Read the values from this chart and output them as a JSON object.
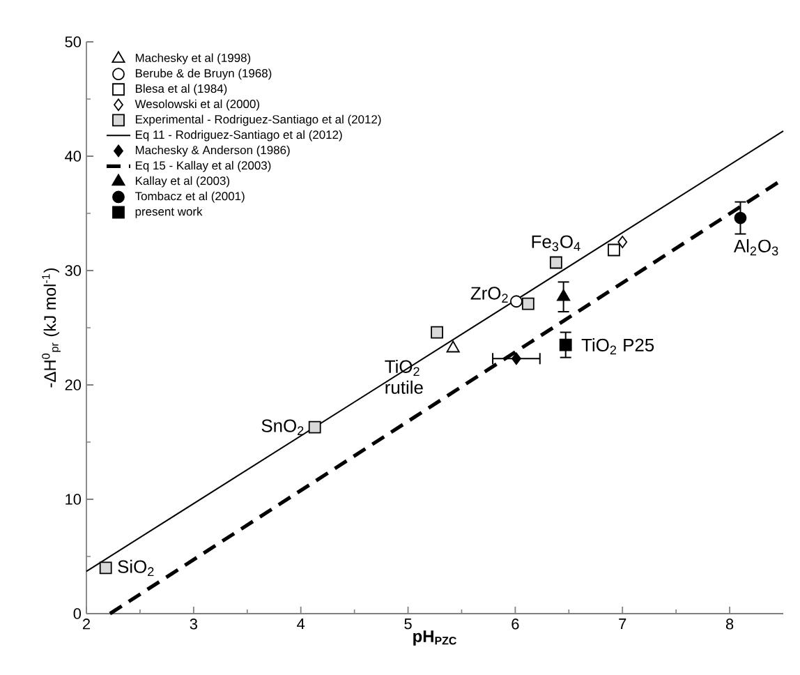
{
  "chart_data": {
    "type": "scatter",
    "xlabel": "**pH$_{PZC}$**",
    "ylabel": "-ΔH$^{0}$$_{pr}$ (kJ mol$^{-1}$)",
    "xlim": [
      2,
      8.5
    ],
    "ylim": [
      0,
      50
    ],
    "xticks": [
      2,
      3,
      4,
      5,
      6,
      7,
      8
    ],
    "yticks": [
      0,
      10,
      20,
      30,
      40,
      50
    ],
    "grid": false,
    "legend": "top left",
    "series": [
      {
        "name": "Machesky et al (1998)",
        "marker": "triangle",
        "color": "#ffffff",
        "x": [
          5.42
        ],
        "values": [
          23.2
        ]
      },
      {
        "name": "Berube & de Bruyn (1968)",
        "marker": "circle",
        "color": "#ffffff",
        "x": [
          6.01
        ],
        "values": [
          27.3
        ]
      },
      {
        "name": "Blesa et al (1984)",
        "marker": "square",
        "color": "#ffffff",
        "x": [
          6.92
        ],
        "values": [
          31.8
        ]
      },
      {
        "name": "Wesolowski et al (2000)",
        "marker": "diamond",
        "color": "#ffffff",
        "x": [
          7.0
        ],
        "values": [
          32.5
        ]
      },
      {
        "name": "Experimental - Rodriguez-Santiago et al (2012)",
        "marker": "square",
        "color": "#d9d9d9",
        "x": [
          2.18,
          4.13,
          5.27,
          6.12,
          6.38
        ],
        "values": [
          4.0,
          16.3,
          24.6,
          27.1,
          30.7
        ]
      },
      {
        "name": "Eq 11 - Rodriguez-Santiago et al (2012)",
        "type": "line",
        "marker": "none",
        "line_style": "solid",
        "color": "#000000",
        "x": [
          2,
          8.5
        ],
        "values": [
          3.7,
          42.2
        ]
      },
      {
        "name": "Machesky & Anderson (1986)",
        "marker": "diamond",
        "color": "#000000",
        "x": [
          6.01
        ],
        "values": [
          22.3
        ],
        "xerrors": [
          0.22
        ]
      },
      {
        "name": "Eq 15 - Kallay et al (2003)",
        "type": "line",
        "marker": "none",
        "line_style": "dashed",
        "color": "#000000",
        "x": [
          2.22,
          8.5
        ],
        "values": [
          0,
          38.0
        ]
      },
      {
        "name": "Kallay et al (2003)",
        "marker": "triangle",
        "color": "#000000",
        "x": [
          6.45
        ],
        "values": [
          27.7
        ],
        "errors": [
          1.3
        ]
      },
      {
        "name": "Tombacz et al (2001)",
        "marker": "circle",
        "color": "#000000",
        "x": [
          8.1
        ],
        "values": [
          34.6
        ],
        "errors": [
          1.4
        ]
      },
      {
        "name": "present work",
        "marker": "square",
        "color": "#000000",
        "x": [
          6.47
        ],
        "values": [
          23.5
        ],
        "errors": [
          1.1
        ]
      }
    ],
    "annotations": [
      {
        "text": "SiO$_{2}$",
        "x": 2.18,
        "y": 4.0
      },
      {
        "text": "SnO$_{2}$",
        "x": 4.13,
        "y": 16.3
      },
      {
        "text": "TiO$_{2}$ rutile",
        "x": 5.42,
        "y": 23.2
      },
      {
        "text": "ZrO$_{2}$",
        "x": 6.01,
        "y": 27.3
      },
      {
        "text": "Fe$_{3}$O$_{4}$",
        "x": 6.38,
        "y": 30.7
      },
      {
        "text": "TiO$_{2}$ P25",
        "x": 6.47,
        "y": 23.5
      },
      {
        "text": "Al$_{2}$O$_{3}$",
        "x": 8.1,
        "y": 34.6
      }
    ]
  }
}
